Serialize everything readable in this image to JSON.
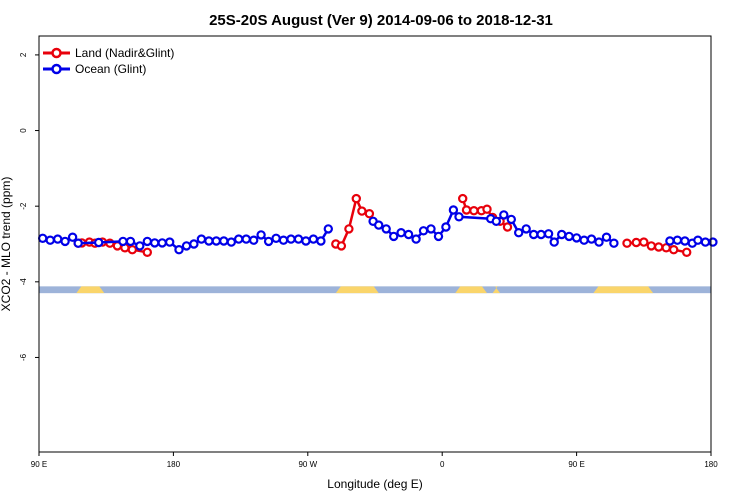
{
  "chart_data": {
    "type": "line",
    "title": "25S-20S August (Ver 9)   2014-09-06 to 2018-12-31",
    "xlabel": "Longitude (deg E)",
    "ylabel": "XCO2 - MLO trend (ppm)",
    "xlim": [
      90,
      450
    ],
    "ylim": [
      -8.5,
      2.5
    ],
    "x_ticks": [
      {
        "value": 90,
        "label": "90 E"
      },
      {
        "value": 162,
        "label": "180"
      },
      {
        "value": 234,
        "label": "90 W"
      },
      {
        "value": 306,
        "label": "0"
      },
      {
        "value": 378,
        "label": "90 E"
      },
      {
        "value": 450,
        "label": "180"
      }
    ],
    "y_ticks": [
      {
        "value": 2,
        "label": "2"
      },
      {
        "value": 0,
        "label": "0"
      },
      {
        "value": -2,
        "label": "-2"
      },
      {
        "value": -4,
        "label": "-4"
      },
      {
        "value": -6,
        "label": "-6"
      }
    ],
    "legend": {
      "position": "top-left"
    },
    "colors": {
      "land": "#e8000b",
      "ocean": "#0000e8",
      "strip_ocean": "#9db3d9",
      "strip_land": "#fad56b"
    },
    "series": [
      {
        "name": "Land (Nadir&Glint)",
        "color": "#e8000b",
        "segments": [
          [
            [
              111,
              -2.98
            ],
            [
              113,
              -2.97
            ],
            [
              117,
              -2.95
            ],
            [
              120,
              -2.98
            ],
            [
              124,
              -2.95
            ],
            [
              128,
              -2.98
            ],
            [
              132,
              -3.05
            ],
            [
              136,
              -3.1
            ],
            [
              140,
              -3.15
            ],
            [
              148,
              -3.22
            ]
          ],
          [
            [
              249,
              -3
            ],
            [
              252,
              -3.05
            ],
            [
              256,
              -2.6
            ],
            [
              260,
              -1.8
            ],
            [
              263,
              -2.13
            ],
            [
              267,
              -2.2
            ]
          ],
          [
            [
              317,
              -1.8
            ],
            [
              319,
              -2.1
            ],
            [
              323,
              -2.12
            ],
            [
              327,
              -2.12
            ],
            [
              330,
              -2.08
            ],
            [
              333,
              -2.3
            ],
            [
              337,
              -2.4
            ],
            [
              341,
              -2.55
            ]
          ],
          [
            [
              405,
              -2.98
            ],
            [
              410,
              -2.96
            ],
            [
              414,
              -2.95
            ],
            [
              418,
              -3.05
            ],
            [
              422,
              -3.08
            ],
            [
              426,
              -3.1
            ],
            [
              430,
              -3.15
            ],
            [
              437,
              -3.22
            ]
          ]
        ]
      },
      {
        "name": "Ocean (Glint)",
        "color": "#0000e8",
        "segments": [
          [
            [
              92,
              -2.85
            ],
            [
              96,
              -2.9
            ],
            [
              100,
              -2.87
            ],
            [
              104,
              -2.93
            ],
            [
              108,
              -2.82
            ],
            [
              111,
              -2.98
            ],
            [
              122,
              -2.96
            ],
            [
              135,
              -2.93
            ],
            [
              139,
              -2.93
            ],
            [
              144,
              -3.05
            ],
            [
              148,
              -2.93
            ],
            [
              152,
              -2.97
            ],
            [
              156,
              -2.97
            ],
            [
              160,
              -2.95
            ],
            [
              165,
              -3.15
            ],
            [
              169,
              -3.05
            ],
            [
              173,
              -3
            ],
            [
              177,
              -2.87
            ],
            [
              181,
              -2.92
            ],
            [
              185,
              -2.92
            ],
            [
              189,
              -2.92
            ],
            [
              193,
              -2.95
            ],
            [
              197,
              -2.87
            ],
            [
              201,
              -2.87
            ],
            [
              205,
              -2.9
            ],
            [
              209,
              -2.76
            ],
            [
              213,
              -2.93
            ],
            [
              217,
              -2.85
            ],
            [
              221,
              -2.9
            ],
            [
              225,
              -2.87
            ],
            [
              229,
              -2.87
            ],
            [
              233,
              -2.92
            ],
            [
              237,
              -2.87
            ],
            [
              241,
              -2.92
            ],
            [
              245,
              -2.6
            ]
          ],
          [
            [
              269,
              -2.4
            ],
            [
              272,
              -2.5
            ],
            [
              276,
              -2.6
            ],
            [
              280,
              -2.8
            ],
            [
              284,
              -2.7
            ],
            [
              288,
              -2.75
            ],
            [
              292,
              -2.87
            ],
            [
              296,
              -2.65
            ],
            [
              300,
              -2.6
            ],
            [
              304,
              -2.8
            ],
            [
              308,
              -2.55
            ],
            [
              312,
              -2.1
            ],
            [
              315,
              -2.28
            ],
            [
              332,
              -2.33
            ],
            [
              335,
              -2.4
            ],
            [
              339,
              -2.23
            ],
            [
              343,
              -2.35
            ],
            [
              347,
              -2.7
            ],
            [
              351,
              -2.6
            ],
            [
              355,
              -2.75
            ],
            [
              359,
              -2.75
            ],
            [
              363,
              -2.73
            ],
            [
              366,
              -2.95
            ],
            [
              370,
              -2.75
            ],
            [
              374,
              -2.8
            ],
            [
              378,
              -2.84
            ],
            [
              382,
              -2.9
            ],
            [
              386,
              -2.87
            ],
            [
              390,
              -2.95
            ],
            [
              394,
              -2.82
            ],
            [
              398,
              -2.98
            ]
          ],
          [
            [
              428,
              -2.92
            ],
            [
              432,
              -2.9
            ],
            [
              436,
              -2.92
            ],
            [
              440,
              -2.98
            ],
            [
              443,
              -2.9
            ],
            [
              447,
              -2.95
            ],
            [
              451,
              -2.95
            ]
          ]
        ]
      }
    ],
    "landmask": {
      "y_range": [
        -4.12,
        -4.3
      ],
      "land_lon_ranges": [
        [
          110,
          125
        ],
        [
          249,
          272
        ],
        [
          313,
          330
        ],
        [
          333,
          337
        ],
        [
          387,
          419
        ]
      ]
    }
  }
}
